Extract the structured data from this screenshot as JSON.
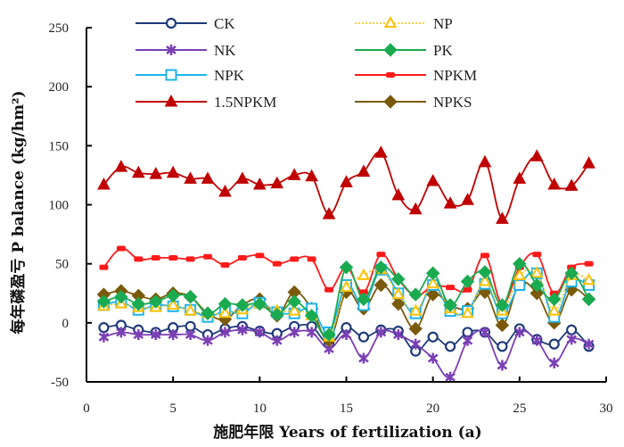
{
  "chart_data": {
    "type": "line",
    "title": "",
    "xlabel": "施肥年限 Years of fertilization (a)",
    "ylabel": "每年磷盈亏 P balance (kg/hm²)",
    "xlim": [
      0,
      30
    ],
    "ylim": [
      -50,
      250
    ],
    "xticks": [
      0,
      5,
      10,
      15,
      20,
      25,
      30
    ],
    "yticks": [
      -50,
      0,
      50,
      100,
      150,
      200,
      250
    ],
    "xtick_labels": [
      "0",
      "5",
      "10",
      "15",
      "20",
      "25",
      "30"
    ],
    "ytick_labels": [
      "-50",
      "0",
      "50",
      "100",
      "150",
      "200",
      "250"
    ],
    "grid": false,
    "legend_position": "top",
    "x": [
      1,
      2,
      3,
      4,
      5,
      6,
      7,
      8,
      9,
      10,
      11,
      12,
      13,
      14,
      15,
      16,
      17,
      18,
      19,
      20,
      21,
      22,
      23,
      24,
      25,
      26,
      27,
      28,
      29
    ],
    "series": [
      {
        "name": "CK",
        "color": "#1f3a7a",
        "marker": "circle-open",
        "values": [
          -4,
          -2,
          -6,
          -8,
          -4,
          -3,
          -10,
          -5,
          -3,
          -7,
          -9,
          -3,
          -3,
          -18,
          -4,
          -12,
          -6,
          -7,
          -24,
          -12,
          -20,
          -8,
          -8,
          -20,
          -5,
          -14,
          -18,
          -6,
          -20
        ]
      },
      {
        "name": "NP",
        "color": "#ffc000",
        "marker": "triangle-open",
        "dashed": true,
        "values": [
          14,
          16,
          13,
          13,
          15,
          10,
          8,
          8,
          11,
          16,
          10,
          10,
          6,
          -12,
          30,
          40,
          45,
          24,
          10,
          33,
          12,
          8,
          35,
          10,
          40,
          42,
          10,
          40,
          36
        ]
      },
      {
        "name": "NK",
        "color": "#7b3fb5",
        "marker": "star",
        "values": [
          -12,
          -8,
          -10,
          -10,
          -10,
          -10,
          -15,
          -8,
          -6,
          -8,
          -15,
          -8,
          -8,
          -22,
          -10,
          -30,
          -8,
          -10,
          -18,
          -30,
          -46,
          -15,
          -8,
          -36,
          -8,
          -15,
          -34,
          -14,
          -18
        ]
      },
      {
        "name": "PK",
        "color": "#1aab50",
        "marker": "diamond",
        "values": [
          18,
          22,
          16,
          18,
          23,
          22,
          8,
          16,
          15,
          16,
          7,
          18,
          6,
          -10,
          47,
          20,
          47,
          37,
          24,
          42,
          15,
          35,
          43,
          15,
          50,
          32,
          20,
          42,
          20
        ]
      },
      {
        "name": "NPK",
        "color": "#1eb4ea",
        "marker": "square-open",
        "values": [
          15,
          18,
          11,
          15,
          14,
          11,
          5,
          10,
          8,
          17,
          9,
          8,
          12,
          -8,
          32,
          15,
          45,
          25,
          8,
          32,
          10,
          10,
          33,
          8,
          32,
          42,
          5,
          35,
          32
        ]
      },
      {
        "name": "NPKM",
        "color": "#ff1a1a",
        "marker": "dash",
        "values": [
          47,
          63,
          54,
          55,
          55,
          54,
          56,
          49,
          55,
          57,
          50,
          54,
          54,
          28,
          47,
          26,
          58,
          37,
          23,
          31,
          30,
          28,
          57,
          16,
          47,
          58,
          25,
          47,
          50
        ]
      },
      {
        "name": "1.5NPKM",
        "color": "#c00000",
        "marker": "triangle",
        "values": [
          117,
          132,
          127,
          126,
          127,
          122,
          122,
          111,
          122,
          117,
          118,
          125,
          124,
          92,
          119,
          128,
          144,
          108,
          96,
          120,
          101,
          104,
          136,
          88,
          122,
          141,
          117,
          116,
          135
        ]
      },
      {
        "name": "NPKS",
        "color": "#7a5a0a",
        "marker": "diamond",
        "values": [
          24,
          27,
          23,
          20,
          25,
          22,
          8,
          3,
          15,
          20,
          6,
          26,
          12,
          -15,
          26,
          12,
          32,
          16,
          -5,
          24,
          15,
          12,
          26,
          -2,
          33,
          25,
          0,
          28,
          20
        ]
      }
    ]
  }
}
